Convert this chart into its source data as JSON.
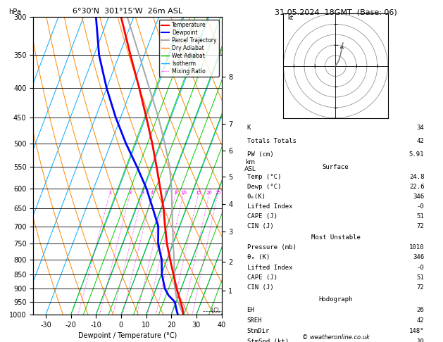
{
  "title_left": "6°30'N  301°15'W  26m ASL",
  "title_right": "31.05.2024  18GMT  (Base: 06)",
  "xlabel": "Dewpoint / Temperature (°C)",
  "ylabel_left": "hPa",
  "isotherm_color": "#00aaff",
  "dry_adiabat_color": "#ff8800",
  "wet_adiabat_color": "#00cc00",
  "mixing_ratio_color": "#ff00ff",
  "temperature_color": "#ff0000",
  "dewpoint_color": "#0000ff",
  "parcel_color": "#aaaaaa",
  "km_ticks": [
    1,
    2,
    3,
    4,
    5,
    6,
    7,
    8
  ],
  "km_pressures": [
    907,
    808,
    715,
    640,
    572,
    515,
    462,
    382
  ],
  "mixing_ratio_values": [
    1,
    2,
    3,
    4,
    6,
    8,
    10,
    15,
    20,
    25
  ],
  "stats": {
    "K": 34,
    "Totals_Totals": 42,
    "PW_cm": "5.91",
    "Surface_Temp": "24.8",
    "Surface_Dewp": "22.6",
    "Surface_thetae": "346",
    "Surface_LI": "-0",
    "Surface_CAPE": "51",
    "Surface_CIN": "72",
    "MU_Pressure": "1010",
    "MU_thetae": "346",
    "MU_LI": "-0",
    "MU_CAPE": "51",
    "MU_CIN": "72",
    "EH": "26",
    "SREH": "42",
    "StmDir": "148°",
    "StmSpd": "10"
  },
  "temperature_profile": {
    "pressure": [
      1000,
      975,
      950,
      925,
      900,
      850,
      800,
      750,
      700,
      650,
      600,
      550,
      500,
      450,
      400,
      350,
      300
    ],
    "temp": [
      24.8,
      23.5,
      21.8,
      20.0,
      18.2,
      14.8,
      11.2,
      7.5,
      4.2,
      0.8,
      -3.5,
      -8.2,
      -13.5,
      -19.8,
      -27.0,
      -35.5,
      -45.0
    ]
  },
  "dewpoint_profile": {
    "pressure": [
      1000,
      975,
      950,
      925,
      900,
      850,
      800,
      750,
      700,
      650,
      600,
      550,
      500,
      450,
      400,
      350,
      300
    ],
    "temp": [
      22.6,
      21.0,
      19.5,
      16.0,
      13.5,
      10.2,
      7.8,
      4.0,
      1.5,
      -3.5,
      -9.0,
      -16.0,
      -24.0,
      -32.0,
      -40.0,
      -48.0,
      -55.0
    ]
  },
  "parcel_profile": {
    "pressure": [
      1000,
      975,
      950,
      925,
      900,
      850,
      800,
      750,
      700,
      650,
      600,
      550,
      500,
      450,
      400,
      350,
      300
    ],
    "temp": [
      24.8,
      22.8,
      20.8,
      19.0,
      17.5,
      15.2,
      12.8,
      10.0,
      7.2,
      4.2,
      1.0,
      -3.0,
      -8.5,
      -15.0,
      -23.0,
      -32.0,
      -42.5
    ]
  },
  "lcl_pressure": 985,
  "skew": 45,
  "p_min": 300,
  "p_max": 1000,
  "t_min": -35,
  "t_max": 40,
  "pressure_levels": [
    300,
    350,
    400,
    450,
    500,
    550,
    600,
    650,
    700,
    750,
    800,
    850,
    900,
    950,
    1000
  ]
}
